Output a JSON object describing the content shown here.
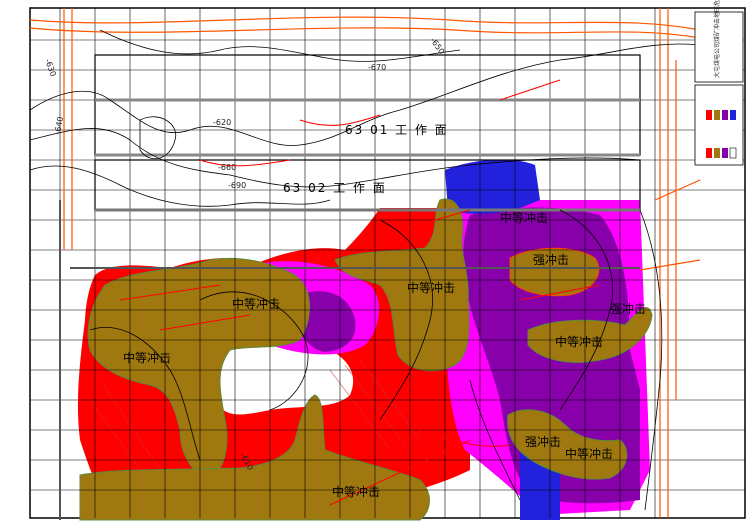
{
  "map": {
    "title_block": "大屯煤电公司煤矿冲击地压危险区域图",
    "faces": [
      {
        "id": "face-6301",
        "label": "63 01 工 作 面"
      },
      {
        "id": "face-6302",
        "label": "63 02 工 作 面"
      }
    ],
    "zones": [
      {
        "id": "zone-medium-1",
        "label": "中等冲击",
        "level": "medium"
      },
      {
        "id": "zone-medium-2",
        "label": "中等冲击",
        "level": "medium"
      },
      {
        "id": "zone-medium-3",
        "label": "中等冲击",
        "level": "medium"
      },
      {
        "id": "zone-medium-4",
        "label": "中等冲击",
        "level": "medium"
      },
      {
        "id": "zone-medium-5",
        "label": "中等冲击",
        "level": "medium"
      },
      {
        "id": "zone-medium-6",
        "label": "中等冲击",
        "level": "medium"
      },
      {
        "id": "zone-medium-7",
        "label": "中等冲击",
        "level": "medium"
      },
      {
        "id": "zone-strong-1",
        "label": "强冲击",
        "level": "strong"
      },
      {
        "id": "zone-strong-2",
        "label": "强冲击",
        "level": "strong"
      },
      {
        "id": "zone-strong-3",
        "label": "强冲击",
        "level": "strong"
      }
    ],
    "contour_labels": [
      "-650",
      "-630",
      "-660",
      "-690",
      "-670",
      "-620",
      "-640",
      "-610"
    ],
    "colors": {
      "strong": "#ff0000",
      "medium": "#a07810",
      "purple": "#8800aa",
      "magenta": "#ff00ff",
      "blue": "#2222dd",
      "grid": "#000000",
      "road": "#ff5500",
      "contour": "#000000",
      "fault": "#ff0000"
    },
    "legend_swatches": [
      "#ff0000",
      "#a07810",
      "#8800aa",
      "#2222dd",
      "#ff00ff"
    ]
  }
}
